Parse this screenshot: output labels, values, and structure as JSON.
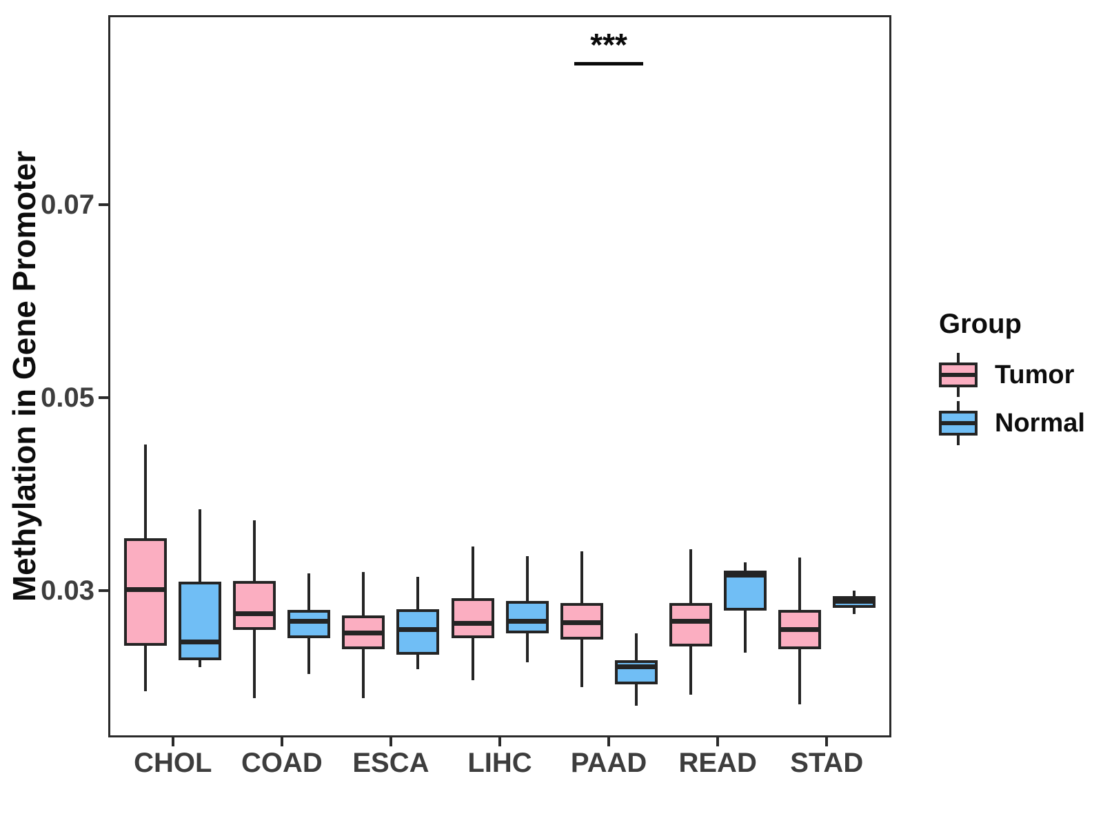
{
  "chart_data": {
    "type": "boxplot",
    "title": "",
    "xlabel": "",
    "ylabel": "Methylation in Gene Promoter",
    "categories": [
      "CHOL",
      "COAD",
      "ESCA",
      "LIHC",
      "PAAD",
      "READ",
      "STAD"
    ],
    "y_ticks": [
      0.03,
      0.05,
      0.07
    ],
    "ylim": [
      0.0148,
      0.0896
    ],
    "grid": false,
    "legend": {
      "title": "Group",
      "position": "right",
      "entries": [
        {
          "label": "Tumor",
          "color": "#FBAEC1"
        },
        {
          "label": "Normal",
          "color": "#70BEF5"
        }
      ]
    },
    "series": [
      {
        "name": "Tumor",
        "color": "#FBAEC1",
        "boxes": [
          {
            "category": "CHOL",
            "whisker_low": 0.0196,
            "q1": 0.0243,
            "median": 0.0301,
            "q3": 0.0354,
            "whisker_high": 0.0451
          },
          {
            "category": "COAD",
            "whisker_low": 0.0189,
            "q1": 0.0259,
            "median": 0.0276,
            "q3": 0.031,
            "whisker_high": 0.0373
          },
          {
            "category": "ESCA",
            "whisker_low": 0.0189,
            "q1": 0.0239,
            "median": 0.0256,
            "q3": 0.0274,
            "whisker_high": 0.0319
          },
          {
            "category": "LIHC",
            "whisker_low": 0.0207,
            "q1": 0.0251,
            "median": 0.0266,
            "q3": 0.0292,
            "whisker_high": 0.0346
          },
          {
            "category": "PAAD",
            "whisker_low": 0.02,
            "q1": 0.0249,
            "median": 0.0267,
            "q3": 0.0287,
            "whisker_high": 0.0341
          },
          {
            "category": "READ",
            "whisker_low": 0.0192,
            "q1": 0.0242,
            "median": 0.0268,
            "q3": 0.0287,
            "whisker_high": 0.0343
          },
          {
            "category": "STAD",
            "whisker_low": 0.0182,
            "q1": 0.0239,
            "median": 0.026,
            "q3": 0.028,
            "whisker_high": 0.0334
          }
        ]
      },
      {
        "name": "Normal",
        "color": "#70BEF5",
        "boxes": [
          {
            "category": "CHOL",
            "whisker_low": 0.0221,
            "q1": 0.0228,
            "median": 0.0247,
            "q3": 0.0309,
            "whisker_high": 0.0384
          },
          {
            "category": "COAD",
            "whisker_low": 0.0214,
            "q1": 0.0251,
            "median": 0.0268,
            "q3": 0.028,
            "whisker_high": 0.0318
          },
          {
            "category": "ESCA",
            "whisker_low": 0.0219,
            "q1": 0.0234,
            "median": 0.026,
            "q3": 0.0281,
            "whisker_high": 0.0314
          },
          {
            "category": "LIHC",
            "whisker_low": 0.0226,
            "q1": 0.0256,
            "median": 0.0268,
            "q3": 0.0289,
            "whisker_high": 0.0336
          },
          {
            "category": "PAAD",
            "whisker_low": 0.0181,
            "q1": 0.0203,
            "median": 0.0221,
            "q3": 0.0228,
            "whisker_high": 0.0256
          },
          {
            "category": "READ",
            "whisker_low": 0.0236,
            "q1": 0.0279,
            "median": 0.0316,
            "q3": 0.0321,
            "whisker_high": 0.0329
          },
          {
            "category": "STAD",
            "whisker_low": 0.0276,
            "q1": 0.0282,
            "median": 0.0289,
            "q3": 0.0294,
            "whisker_high": 0.03
          }
        ]
      }
    ],
    "annotations": [
      {
        "type": "significance",
        "label": "***",
        "category": "PAAD",
        "line_y": 0.0846,
        "spans_series": [
          "Tumor",
          "Normal"
        ]
      }
    ]
  }
}
